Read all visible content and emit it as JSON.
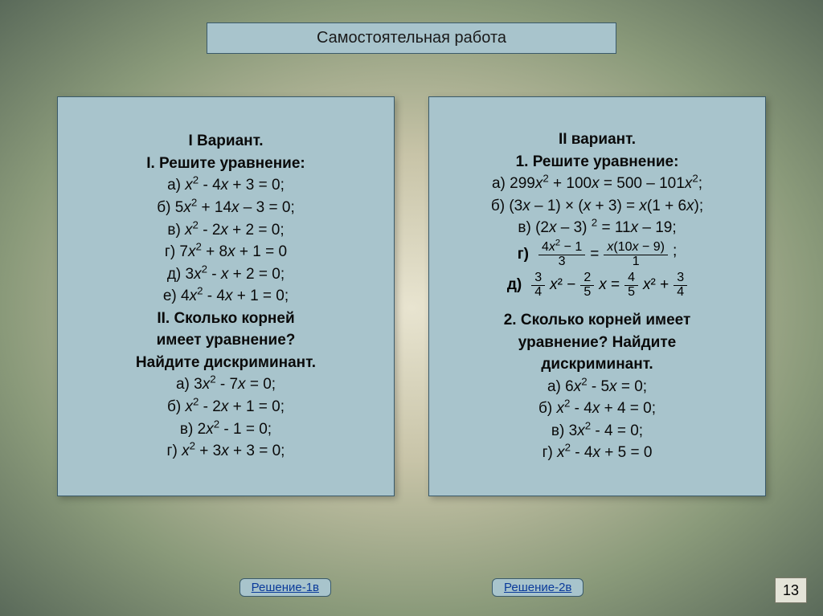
{
  "title": "Самостоятельная работа",
  "variant1": {
    "heading": "I Вариант.",
    "task1_title": "I. Решите уравнение:",
    "eq_a": "а) x² - 4x + 3 = 0;",
    "eq_b": "б) 5x² + 14x – 3 = 0;",
    "eq_v": "в) x² - 2x + 2 = 0;",
    "eq_g": "г) 7x² + 8x + 1 = 0",
    "eq_d": "д) 3x² - x + 2 = 0;",
    "eq_e": "е) 4x² - 4x + 1 = 0;",
    "task2_l1": "II. Сколько корней",
    "task2_l2": "имеет уравнение?",
    "task2_l3": "Найдите дискриминант.",
    "q_a": "а) 3x² - 7x = 0;",
    "q_b": "б) x² - 2x + 1 = 0;",
    "q_v": "в) 2x² - 1 = 0;",
    "q_g": "г) x² + 3x + 3 = 0;"
  },
  "variant2": {
    "heading": "II вариант.",
    "task1_title": "1. Решите уравнение:",
    "eq_a": "а) 299x² + 100x = 500 – 101x²;",
    "eq_b": "б) (3x – 1) × (x + 3) = x(1 + 6x);",
    "eq_v": "в) (2x – 3) ² = 11x – 19;",
    "eq_g_label": "г)",
    "eq_g_frac1_num": "4x² − 1",
    "eq_g_frac1_den": "3",
    "eq_g_frac2_num": "x(10x − 9)",
    "eq_g_frac2_den": "1",
    "eq_g_suffix": ";",
    "eq_d_label": "д)",
    "d_f1n": "3",
    "d_f1d": "4",
    "d_f2n": "2",
    "d_f2d": "5",
    "d_f3n": "4",
    "d_f3d": "5",
    "d_f4n": "3",
    "d_f4d": "4",
    "task2_l1": "2. Сколько корней имеет",
    "task2_l2": "уравнение? Найдите",
    "task2_l3": "дискриминант.",
    "q_a": "а) 6x² - 5x = 0;",
    "q_b": "б) x² - 4x + 4 = 0;",
    "q_v": "в) 3x² - 4 = 0;",
    "q_g": "г) x² - 4x + 5 = 0"
  },
  "links": {
    "left": "Решение-1в",
    "right": "Решение-2в"
  },
  "page_number": "13",
  "colors": {
    "card_bg": "#a8c4cc",
    "card_border": "#3a5a6a",
    "link_color": "#0a3a9a",
    "text": "#0a0a0a"
  }
}
